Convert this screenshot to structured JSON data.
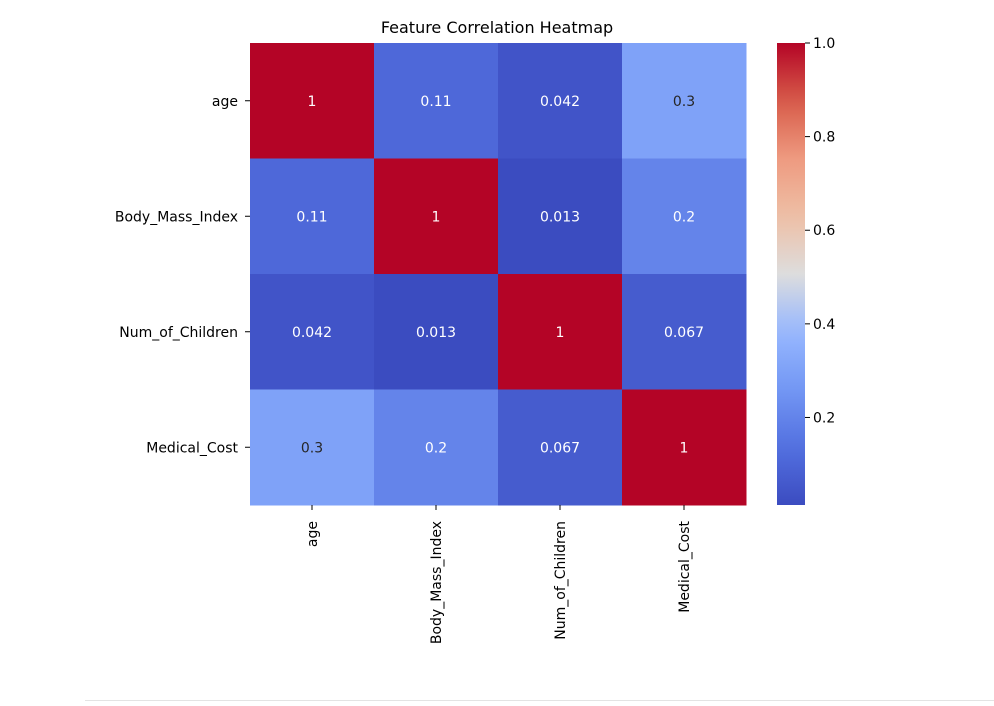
{
  "chart_data": {
    "type": "heatmap",
    "title": "Feature Correlation Heatmap",
    "xlabel": "",
    "ylabel": "",
    "row_labels": [
      "age",
      "Body_Mass_Index",
      "Num_of_Children",
      "Medical_Cost"
    ],
    "col_labels": [
      "age",
      "Body_Mass_Index",
      "Num_of_Children",
      "Medical_Cost"
    ],
    "values": [
      [
        1,
        0.11,
        0.042,
        0.3
      ],
      [
        0.11,
        1,
        0.013,
        0.2
      ],
      [
        0.042,
        0.013,
        1,
        0.067
      ],
      [
        0.3,
        0.2,
        0.067,
        1
      ]
    ],
    "cell_labels": [
      [
        "1",
        "0.11",
        "0.042",
        "0.3"
      ],
      [
        "0.11",
        "1",
        "0.013",
        "0.2"
      ],
      [
        "0.042",
        "0.013",
        "1",
        "0.067"
      ],
      [
        "0.3",
        "0.2",
        "0.067",
        "1"
      ]
    ],
    "colormap": "coolwarm",
    "color_range": [
      0.013,
      1.0
    ],
    "colorbar_ticks": [
      {
        "value": 0.2,
        "label": "0.2"
      },
      {
        "value": 0.4,
        "label": "0.4"
      },
      {
        "value": 0.6,
        "label": "0.6"
      },
      {
        "value": 0.8,
        "label": "0.8"
      },
      {
        "value": 1.0,
        "label": "1.0"
      }
    ],
    "grid": false,
    "legend": "colorbar-right"
  }
}
